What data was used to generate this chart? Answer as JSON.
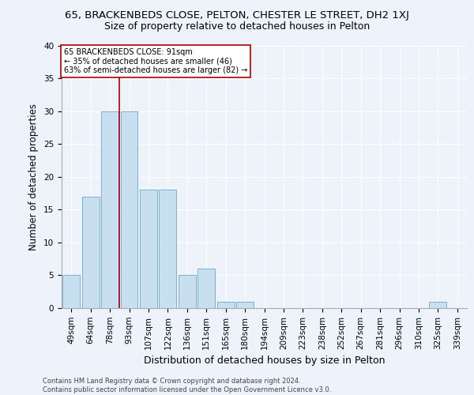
{
  "title_line1": "65, BRACKENBEDS CLOSE, PELTON, CHESTER LE STREET, DH2 1XJ",
  "title_line2": "Size of property relative to detached houses in Pelton",
  "xlabel": "Distribution of detached houses by size in Pelton",
  "ylabel": "Number of detached properties",
  "categories": [
    "49sqm",
    "64sqm",
    "78sqm",
    "93sqm",
    "107sqm",
    "122sqm",
    "136sqm",
    "151sqm",
    "165sqm",
    "180sqm",
    "194sqm",
    "209sqm",
    "223sqm",
    "238sqm",
    "252sqm",
    "267sqm",
    "281sqm",
    "296sqm",
    "310sqm",
    "325sqm",
    "339sqm"
  ],
  "values": [
    5,
    17,
    30,
    30,
    18,
    18,
    5,
    6,
    1,
    1,
    0,
    0,
    0,
    0,
    0,
    0,
    0,
    0,
    0,
    1,
    0
  ],
  "bar_color": "#c8dff0",
  "bar_edge_color": "#7ab0d4",
  "vline_color": "#aa0000",
  "annotation_text": "65 BRACKENBEDS CLOSE: 91sqm\n← 35% of detached houses are smaller (46)\n63% of semi-detached houses are larger (82) →",
  "annotation_box_color": "#aa0000",
  "ylim": [
    0,
    40
  ],
  "yticks": [
    0,
    5,
    10,
    15,
    20,
    25,
    30,
    35,
    40
  ],
  "footer_line1": "Contains HM Land Registry data © Crown copyright and database right 2024.",
  "footer_line2": "Contains public sector information licensed under the Open Government Licence v3.0.",
  "background_color": "#eef2fb",
  "grid_color": "#ffffff",
  "title1_fontsize": 9.5,
  "title2_fontsize": 9,
  "axis_label_fontsize": 8.5,
  "tick_fontsize": 7.5,
  "footer_fontsize": 6
}
